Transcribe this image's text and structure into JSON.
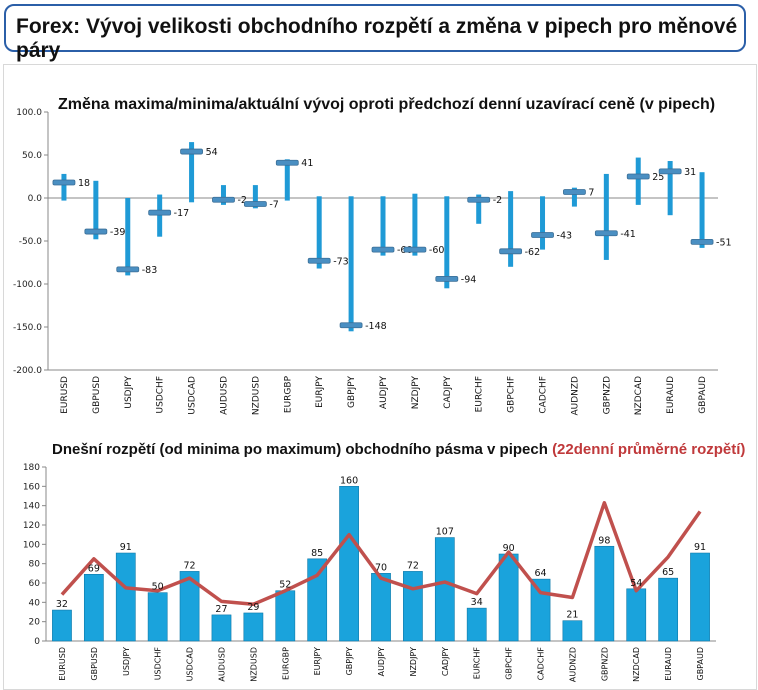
{
  "page": {
    "title": "Forex: Vývoj velikosti obchodního rozpětí a změna v pipech pro měnové páry"
  },
  "chart_data": [
    {
      "type": "bar",
      "title": "Změna maxima/minima/aktuální vývoj oproti předchozí denní uzavírací ceně (v pipech)",
      "categories": [
        "EURUSD",
        "GBPUSD",
        "USDJPY",
        "USDCHF",
        "USDCAD",
        "AUDUSD",
        "NZDUSD",
        "EURGBP",
        "EURJPY",
        "GBPJPY",
        "AUDJPY",
        "NZDJPY",
        "CADJPY",
        "EURCHF",
        "GBPCHF",
        "CADCHF",
        "AUDNZD",
        "GBPNZD",
        "NZDCAD",
        "EURAUD",
        "GBPAUD"
      ],
      "high": [
        28,
        20,
        0,
        4,
        65,
        15,
        15,
        45,
        2,
        2,
        2,
        5,
        2,
        4,
        8,
        2,
        12,
        28,
        47,
        43,
        30
      ],
      "low": [
        -3,
        -48,
        -90,
        -45,
        -5,
        -8,
        -12,
        -3,
        -82,
        -155,
        -67,
        -67,
        -105,
        -30,
        -80,
        -60,
        -10,
        -72,
        -8,
        -20,
        -58
      ],
      "current": [
        18,
        -39,
        -83,
        -17,
        54,
        -2,
        -7,
        41,
        -73,
        -148,
        -60,
        -60,
        -94,
        -2,
        -62,
        -43,
        7,
        -41,
        25,
        31,
        -51
      ],
      "data_labels": [
        "18",
        "-39",
        "-83",
        "-17",
        "54",
        "-2",
        "-7",
        "41",
        "-73",
        "-148",
        "-60",
        "-60",
        "-94",
        "-2",
        "-62",
        "-43",
        "7",
        "-41",
        "25",
        "31",
        "-51"
      ],
      "ylim": [
        -200,
        100
      ],
      "yticks": [
        "100.0",
        "50.0",
        "0.0",
        "-50.0",
        "-100.0",
        "-150.0",
        "-200.0"
      ],
      "grid": false,
      "colors": {
        "bar": "#1f9ad6",
        "marker": "#4a8fc2"
      }
    },
    {
      "type": "bar",
      "title": "Dnešní rozpětí (od minima po maximum) obchodního pásma v pipech",
      "title_extra": "(22denní průměrné rozpětí)",
      "categories": [
        "EURUSD",
        "GBPUSD",
        "USDJPY",
        "USDCHF",
        "USDCAD",
        "AUDUSD",
        "NZDUSD",
        "EURGBP",
        "EURJPY",
        "GBPJPY",
        "AUDJPY",
        "NZDJPY",
        "CADJPY",
        "EURCHF",
        "GBPCHF",
        "CADCHF",
        "AUDNZD",
        "GBPNZD",
        "NZDCAD",
        "EURAUD",
        "GBPAUD"
      ],
      "series": [
        {
          "values": [
            32,
            69,
            91,
            50,
            72,
            27,
            29,
            52,
            85,
            160,
            70,
            72,
            107,
            34,
            90,
            64,
            21,
            98,
            54,
            65,
            91
          ]
        },
        {
          "values": [
            48,
            85,
            55,
            52,
            65,
            41,
            38,
            52,
            68,
            110,
            65,
            54,
            61,
            49,
            92,
            50,
            45,
            143,
            52,
            87,
            134
          ]
        }
      ],
      "data_labels": [
        "32",
        "69",
        "91",
        "50",
        "72",
        "27",
        "29",
        "52",
        "85",
        "160",
        "70",
        "72",
        "107",
        "34",
        "90",
        "64",
        "21",
        "98",
        "54",
        "65",
        "91"
      ],
      "ylim": [
        0,
        180
      ],
      "yticks": [
        "180",
        "160",
        "140",
        "120",
        "100",
        "80",
        "60",
        "40",
        "20",
        "0"
      ],
      "grid": false,
      "colors": {
        "bar": "#1aa3dc",
        "line": "#c0504d"
      }
    }
  ]
}
